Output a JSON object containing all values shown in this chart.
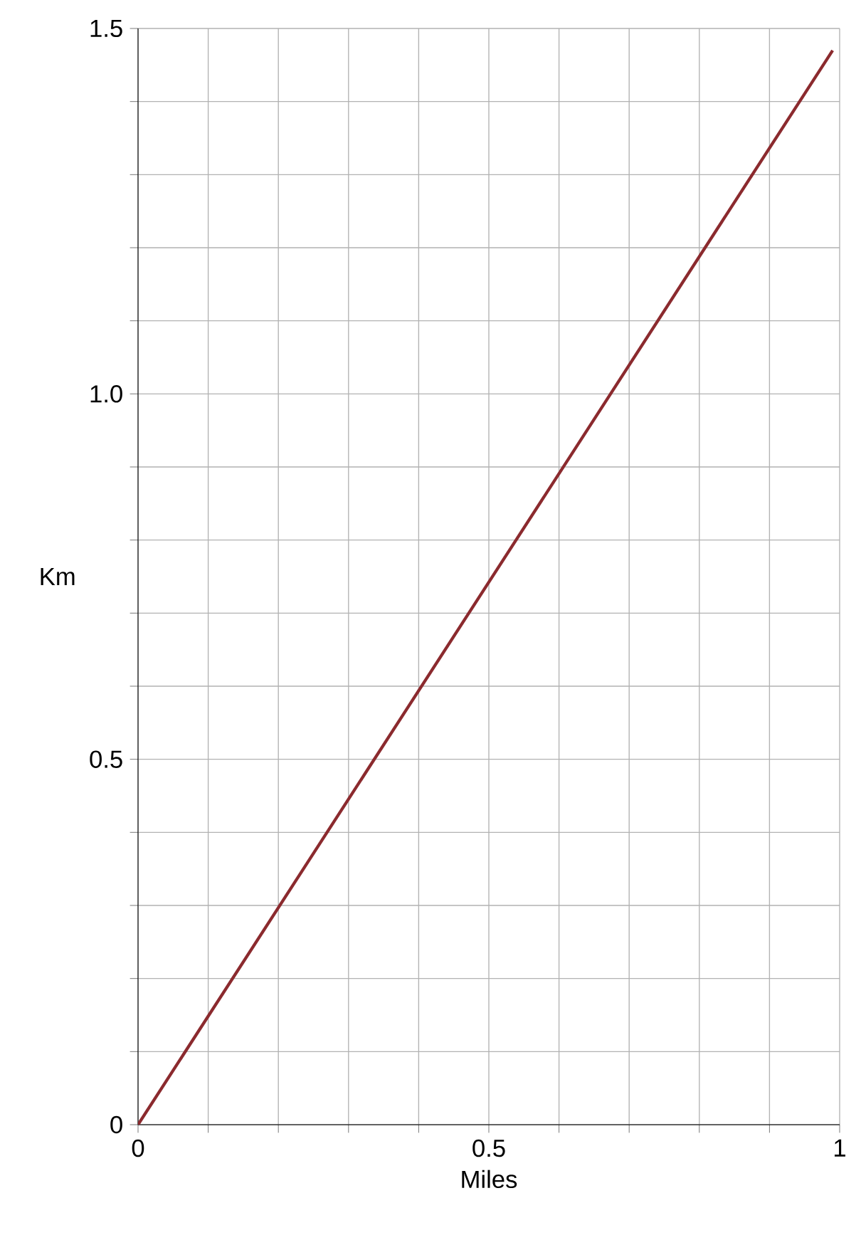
{
  "chart_data": {
    "type": "line",
    "xlabel": "Miles",
    "ylabel": "Km",
    "series": [
      {
        "color": "#8b2a2e",
        "x": [
          0,
          0.99
        ],
        "values": [
          0,
          1.47
        ]
      }
    ],
    "xlim": [
      0,
      1
    ],
    "ylim": [
      0,
      1.5
    ],
    "xticks": [
      0,
      {
        "value": 0.1,
        "label": null
      },
      {
        "value": 0.2,
        "label": null
      },
      {
        "value": 0.3,
        "label": null
      },
      {
        "value": 0.4,
        "label": null
      },
      0.5,
      {
        "value": 0.6,
        "label": null
      },
      {
        "value": 0.7,
        "label": null
      },
      {
        "value": 0.8,
        "label": null
      },
      {
        "value": 0.9,
        "label": null
      },
      1
    ],
    "yticks": [
      0,
      {
        "value": 0.1,
        "label": null
      },
      {
        "value": 0.2,
        "label": null
      },
      {
        "value": 0.3,
        "label": null
      },
      {
        "value": 0.4,
        "label": null
      },
      0.5,
      {
        "value": 0.6,
        "label": null
      },
      {
        "value": 0.7,
        "label": null
      },
      {
        "value": 0.8,
        "label": null
      },
      {
        "value": 0.9,
        "label": null
      },
      {
        "value": 1.0,
        "label": "1.0"
      },
      {
        "value": 1.1,
        "label": null
      },
      {
        "value": 1.2,
        "label": null
      },
      {
        "value": 1.3,
        "label": null
      },
      {
        "value": 1.4,
        "label": null
      },
      1.5
    ],
    "grid": true,
    "marker": "none",
    "line_style": "solid"
  }
}
